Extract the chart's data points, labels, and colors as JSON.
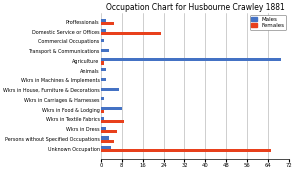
{
  "title": "Occupation Chart for Husbourne Crawley 1881",
  "categories": [
    "Proffessionals",
    "Domestic Service or Offices",
    "Commercial Occupations",
    "Transport & Communications",
    "Agriculture",
    "Animals",
    "Wkrs in Machines & Implements",
    "Wkrs in House, Furniture & Decorations",
    "Wkrs in Carriages & Harnesses",
    "Wkrs in Food & Lodging",
    "Wkrs in Textile Fabrics",
    "Wkrs in Dress",
    "Persons without Specified Occupations",
    "Unknown Occupation"
  ],
  "males": [
    2,
    2,
    1,
    3,
    69,
    2,
    2,
    7,
    1,
    8,
    1,
    2,
    3,
    4
  ],
  "females": [
    5,
    23,
    0,
    0,
    1,
    0,
    0,
    0,
    0,
    1,
    9,
    6,
    5,
    65
  ],
  "male_color": "#4472C4",
  "female_color": "#E8401C",
  "xlim": [
    0,
    72
  ],
  "xticks": [
    0,
    8,
    16,
    24,
    32,
    40,
    48,
    56,
    64,
    72
  ],
  "background_color": "#FFFFFF",
  "grid_color": "#AAAAAA",
  "title_fontsize": 5.5,
  "label_fontsize": 3.5,
  "tick_fontsize": 3.8,
  "legend_fontsize": 4.0,
  "bar_height": 0.32
}
